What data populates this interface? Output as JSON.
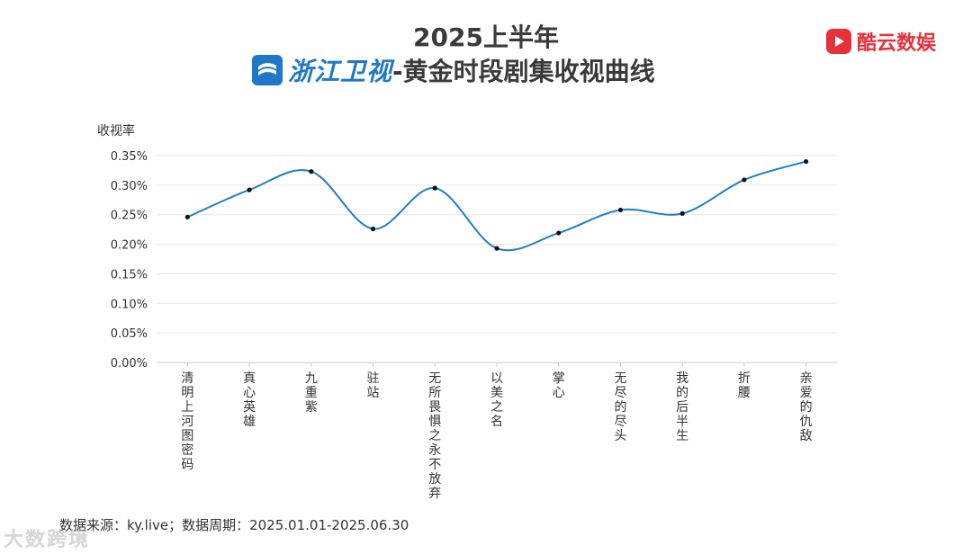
{
  "header": {
    "title_line1": "2025上半年",
    "channel_name": "浙江卫视",
    "title_suffix": "-黄金时段剧集收视曲线"
  },
  "brand": {
    "name": "酷云数娱",
    "icon": "play-logo-icon",
    "color": "#e8303a"
  },
  "chart_data": {
    "type": "line",
    "ylabel": "收视率",
    "ylim": [
      0,
      0.35
    ],
    "yticks": [
      "0.00%",
      "0.05%",
      "0.10%",
      "0.15%",
      "0.20%",
      "0.25%",
      "0.30%",
      "0.35%"
    ],
    "categories": [
      "清明上河图密码",
      "真心英雄",
      "九重紫",
      "驻站",
      "无所畏惧之永不放弃",
      "以美之名",
      "掌心",
      "无尽的尽头",
      "我的后半生",
      "折腰",
      "亲爱的仇敌"
    ],
    "series": [
      {
        "values": [
          0.246,
          0.292,
          0.323,
          0.226,
          0.295,
          0.193,
          0.219,
          0.258,
          0.252,
          0.309,
          0.34
        ],
        "color": "#1f7fc4"
      }
    ],
    "grid": true,
    "smooth": true
  },
  "footer": {
    "source": "数据来源：ky.live；数据周期：2025.01.01-2025.06.30"
  },
  "watermark": {
    "text": "大数跨境"
  }
}
